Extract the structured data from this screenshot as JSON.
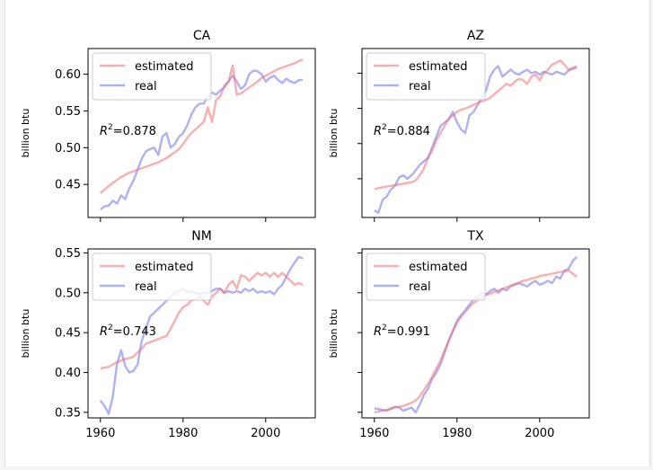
{
  "figure": {
    "background": "#ffffff"
  },
  "colors": {
    "estimated": "#f46d6d",
    "real": "#6f6fef"
  },
  "chart_data": [
    {
      "type": "line",
      "title": "CA",
      "ylabel": "billion btu",
      "xlim": [
        1957,
        2012
      ],
      "ylim": [
        0.405,
        0.635
      ],
      "yticks": [
        0.45,
        0.5,
        0.55,
        0.6
      ],
      "ytick_labels": [
        "0.45",
        "0.50",
        "0.55",
        "0.60"
      ],
      "xticks": [
        1960,
        1980,
        2000
      ],
      "xtick_labels": [],
      "annotation": {
        "prefix": "R",
        "sup": "2",
        "value": "=0.878"
      },
      "legend": {
        "position": "upper-left",
        "entries": [
          "estimated",
          "real"
        ]
      },
      "x": [
        1960,
        1961,
        1962,
        1963,
        1964,
        1965,
        1966,
        1967,
        1968,
        1969,
        1970,
        1971,
        1972,
        1973,
        1974,
        1975,
        1976,
        1977,
        1978,
        1979,
        1980,
        1981,
        1982,
        1983,
        1984,
        1985,
        1986,
        1987,
        1988,
        1989,
        1990,
        1991,
        1992,
        1993,
        1994,
        1995,
        1996,
        1997,
        1998,
        1999,
        2000,
        2001,
        2002,
        2003,
        2004,
        2005,
        2006,
        2007,
        2008,
        2009
      ],
      "series": [
        {
          "name": "estimated",
          "values": [
            0.438,
            0.443,
            0.448,
            0.452,
            0.456,
            0.46,
            0.463,
            0.466,
            0.468,
            0.47,
            0.472,
            0.474,
            0.476,
            0.478,
            0.48,
            0.483,
            0.486,
            0.49,
            0.494,
            0.498,
            0.505,
            0.513,
            0.52,
            0.525,
            0.53,
            0.535,
            0.555,
            0.535,
            0.565,
            0.57,
            0.585,
            0.59,
            0.612,
            0.572,
            0.574,
            0.578,
            0.582,
            0.586,
            0.59,
            0.595,
            0.598,
            0.601,
            0.604,
            0.607,
            0.609,
            0.611,
            0.613,
            0.615,
            0.618,
            0.62
          ]
        },
        {
          "name": "real",
          "values": [
            0.416,
            0.42,
            0.421,
            0.428,
            0.424,
            0.435,
            0.43,
            0.445,
            0.455,
            0.47,
            0.485,
            0.495,
            0.498,
            0.5,
            0.49,
            0.515,
            0.52,
            0.5,
            0.505,
            0.515,
            0.52,
            0.53,
            0.545,
            0.555,
            0.56,
            0.56,
            0.57,
            0.575,
            0.572,
            0.578,
            0.582,
            0.59,
            0.598,
            0.59,
            0.58,
            0.585,
            0.6,
            0.605,
            0.604,
            0.6,
            0.59,
            0.595,
            0.598,
            0.592,
            0.588,
            0.594,
            0.59,
            0.588,
            0.592,
            0.592
          ]
        }
      ]
    },
    {
      "type": "line",
      "title": "AZ",
      "ylabel": "billion btu",
      "xlim": [
        1957,
        2012
      ],
      "ylim": [
        0.395,
        0.635
      ],
      "yticks": [
        0.45,
        0.5,
        0.55,
        0.6
      ],
      "ytick_labels": [],
      "xticks": [
        1960,
        1980,
        2000
      ],
      "xtick_labels": [],
      "annotation": {
        "prefix": "R",
        "sup": "2",
        "value": "=0.884"
      },
      "legend": {
        "position": "upper-left",
        "entries": [
          "estimated",
          "real"
        ]
      },
      "x": [
        1960,
        1961,
        1962,
        1963,
        1964,
        1965,
        1966,
        1967,
        1968,
        1969,
        1970,
        1971,
        1972,
        1973,
        1974,
        1975,
        1976,
        1977,
        1978,
        1979,
        1980,
        1981,
        1982,
        1983,
        1984,
        1985,
        1986,
        1987,
        1988,
        1989,
        1990,
        1991,
        1992,
        1993,
        1994,
        1995,
        1996,
        1997,
        1998,
        1999,
        2000,
        2001,
        2002,
        2003,
        2004,
        2005,
        2006,
        2007,
        2008,
        2009
      ],
      "series": [
        {
          "name": "estimated",
          "values": [
            0.435,
            0.437,
            0.438,
            0.439,
            0.44,
            0.441,
            0.442,
            0.443,
            0.444,
            0.445,
            0.448,
            0.455,
            0.465,
            0.48,
            0.49,
            0.505,
            0.515,
            0.525,
            0.535,
            0.54,
            0.545,
            0.548,
            0.55,
            0.552,
            0.555,
            0.558,
            0.56,
            0.562,
            0.565,
            0.57,
            0.575,
            0.58,
            0.585,
            0.582,
            0.588,
            0.592,
            0.59,
            0.585,
            0.595,
            0.598,
            0.59,
            0.6,
            0.605,
            0.612,
            0.615,
            0.618,
            0.612,
            0.605,
            0.608,
            0.61
          ]
        },
        {
          "name": "real",
          "values": [
            0.405,
            0.402,
            0.42,
            0.425,
            0.435,
            0.44,
            0.452,
            0.455,
            0.45,
            0.455,
            0.462,
            0.47,
            0.475,
            0.48,
            0.495,
            0.51,
            0.525,
            0.53,
            0.535,
            0.545,
            0.53,
            0.52,
            0.515,
            0.54,
            0.545,
            0.555,
            0.565,
            0.575,
            0.595,
            0.605,
            0.61,
            0.595,
            0.6,
            0.605,
            0.6,
            0.598,
            0.602,
            0.605,
            0.6,
            0.602,
            0.598,
            0.602,
            0.6,
            0.598,
            0.602,
            0.6,
            0.598,
            0.604,
            0.606,
            0.608
          ]
        }
      ]
    },
    {
      "type": "line",
      "title": "NM",
      "ylabel": "billion btu",
      "xlim": [
        1957,
        2012
      ],
      "ylim": [
        0.343,
        0.555
      ],
      "yticks": [
        0.35,
        0.4,
        0.45,
        0.5,
        0.55
      ],
      "ytick_labels": [
        "0.35",
        "0.40",
        "0.45",
        "0.50",
        "0.55"
      ],
      "xticks": [
        1960,
        1980,
        2000
      ],
      "xtick_labels": [
        "1960",
        "1980",
        "2000"
      ],
      "annotation": {
        "prefix": "R",
        "sup": "2",
        "value": "=0.743"
      },
      "legend": {
        "position": "upper-left",
        "entries": [
          "estimated",
          "real"
        ]
      },
      "x": [
        1960,
        1961,
        1962,
        1963,
        1964,
        1965,
        1966,
        1967,
        1968,
        1969,
        1970,
        1971,
        1972,
        1973,
        1974,
        1975,
        1976,
        1977,
        1978,
        1979,
        1980,
        1981,
        1982,
        1983,
        1984,
        1985,
        1986,
        1987,
        1988,
        1989,
        1990,
        1991,
        1992,
        1993,
        1994,
        1995,
        1996,
        1997,
        1998,
        1999,
        2000,
        2001,
        2002,
        2003,
        2004,
        2005,
        2006,
        2007,
        2008,
        2009
      ],
      "series": [
        {
          "name": "estimated",
          "values": [
            0.405,
            0.406,
            0.407,
            0.41,
            0.413,
            0.415,
            0.417,
            0.418,
            0.42,
            0.425,
            0.43,
            0.436,
            0.438,
            0.44,
            0.442,
            0.444,
            0.446,
            0.455,
            0.465,
            0.475,
            0.482,
            0.485,
            0.49,
            0.492,
            0.495,
            0.49,
            0.485,
            0.495,
            0.5,
            0.505,
            0.5,
            0.51,
            0.515,
            0.505,
            0.522,
            0.52,
            0.515,
            0.52,
            0.525,
            0.522,
            0.525,
            0.52,
            0.525,
            0.52,
            0.525,
            0.52,
            0.515,
            0.51,
            0.512,
            0.51
          ]
        },
        {
          "name": "real",
          "values": [
            0.365,
            0.358,
            0.348,
            0.37,
            0.41,
            0.428,
            0.408,
            0.4,
            0.402,
            0.41,
            0.44,
            0.455,
            0.47,
            0.475,
            0.48,
            0.485,
            0.49,
            0.495,
            0.5,
            0.502,
            0.505,
            0.5,
            0.502,
            0.5,
            0.498,
            0.5,
            0.5,
            0.502,
            0.505,
            0.505,
            0.5,
            0.502,
            0.5,
            0.502,
            0.5,
            0.505,
            0.502,
            0.505,
            0.5,
            0.502,
            0.5,
            0.502,
            0.498,
            0.505,
            0.51,
            0.52,
            0.53,
            0.538,
            0.545,
            0.543
          ]
        }
      ]
    },
    {
      "type": "line",
      "title": "TX",
      "ylabel": "billion btu",
      "xlim": [
        1957,
        2012
      ],
      "ylim": [
        0.343,
        0.555
      ],
      "yticks": [
        0.35,
        0.4,
        0.45,
        0.5,
        0.55
      ],
      "ytick_labels": [],
      "xticks": [
        1960,
        1980,
        2000
      ],
      "xtick_labels": [
        "1960",
        "1980",
        "2000"
      ],
      "annotation": {
        "prefix": "R",
        "sup": "2",
        "value": "=0.991"
      },
      "legend": {
        "position": "upper-left",
        "entries": [
          "estimated",
          "real"
        ]
      },
      "x": [
        1960,
        1961,
        1962,
        1963,
        1964,
        1965,
        1966,
        1967,
        1968,
        1969,
        1970,
        1971,
        1972,
        1973,
        1974,
        1975,
        1976,
        1977,
        1978,
        1979,
        1980,
        1981,
        1982,
        1983,
        1984,
        1985,
        1986,
        1987,
        1988,
        1989,
        1990,
        1991,
        1992,
        1993,
        1994,
        1995,
        1996,
        1997,
        1998,
        1999,
        2000,
        2001,
        2002,
        2003,
        2004,
        2005,
        2006,
        2007,
        2008,
        2009
      ],
      "series": [
        {
          "name": "estimated",
          "values": [
            0.35,
            0.351,
            0.352,
            0.353,
            0.354,
            0.356,
            0.357,
            0.358,
            0.36,
            0.362,
            0.365,
            0.37,
            0.378,
            0.386,
            0.395,
            0.405,
            0.415,
            0.428,
            0.44,
            0.452,
            0.462,
            0.47,
            0.476,
            0.482,
            0.487,
            0.491,
            0.494,
            0.497,
            0.499,
            0.501,
            0.503,
            0.505,
            0.507,
            0.509,
            0.511,
            0.513,
            0.515,
            0.516,
            0.518,
            0.519,
            0.521,
            0.522,
            0.523,
            0.524,
            0.525,
            0.526,
            0.527,
            0.528,
            0.524,
            0.52
          ]
        },
        {
          "name": "real",
          "values": [
            0.355,
            0.354,
            0.353,
            0.352,
            0.355,
            0.357,
            0.356,
            0.352,
            0.354,
            0.356,
            0.35,
            0.36,
            0.372,
            0.38,
            0.392,
            0.4,
            0.41,
            0.425,
            0.44,
            0.452,
            0.465,
            0.472,
            0.478,
            0.485,
            0.492,
            0.495,
            0.5,
            0.498,
            0.502,
            0.505,
            0.5,
            0.505,
            0.503,
            0.508,
            0.51,
            0.512,
            0.51,
            0.508,
            0.512,
            0.515,
            0.51,
            0.512,
            0.515,
            0.512,
            0.52,
            0.518,
            0.528,
            0.53,
            0.54,
            0.545
          ]
        }
      ]
    }
  ]
}
